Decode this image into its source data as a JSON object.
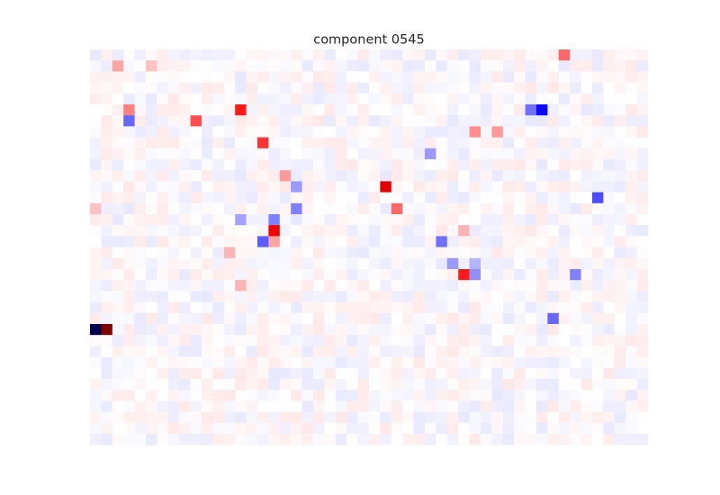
{
  "chart_data": {
    "type": "heatmap",
    "title": "component 0545",
    "xlabel": "",
    "ylabel": "",
    "rows": 36,
    "cols": 50,
    "colormap": "seismic",
    "value_range": [
      -1,
      1
    ],
    "axes_visible": false,
    "grid": false,
    "colorbar": false,
    "highlight_cells": [
      {
        "row": 0,
        "col": 42,
        "value": 0.3
      },
      {
        "row": 1,
        "col": 2,
        "value": 0.18
      },
      {
        "row": 1,
        "col": 5,
        "value": 0.12
      },
      {
        "row": 5,
        "col": 3,
        "value": 0.25
      },
      {
        "row": 5,
        "col": 13,
        "value": 0.45
      },
      {
        "row": 5,
        "col": 39,
        "value": -0.28
      },
      {
        "row": 5,
        "col": 40,
        "value": -0.48
      },
      {
        "row": 6,
        "col": 3,
        "value": -0.3
      },
      {
        "row": 6,
        "col": 9,
        "value": 0.35
      },
      {
        "row": 7,
        "col": 34,
        "value": 0.22
      },
      {
        "row": 7,
        "col": 36,
        "value": 0.2
      },
      {
        "row": 8,
        "col": 15,
        "value": 0.4
      },
      {
        "row": 9,
        "col": 30,
        "value": -0.2
      },
      {
        "row": 11,
        "col": 17,
        "value": 0.2
      },
      {
        "row": 12,
        "col": 18,
        "value": -0.2
      },
      {
        "row": 12,
        "col": 26,
        "value": 0.6
      },
      {
        "row": 13,
        "col": 45,
        "value": -0.35
      },
      {
        "row": 14,
        "col": 0,
        "value": 0.12
      },
      {
        "row": 14,
        "col": 18,
        "value": -0.25
      },
      {
        "row": 14,
        "col": 27,
        "value": 0.3
      },
      {
        "row": 15,
        "col": 13,
        "value": -0.18
      },
      {
        "row": 15,
        "col": 16,
        "value": -0.25
      },
      {
        "row": 16,
        "col": 16,
        "value": 0.55
      },
      {
        "row": 16,
        "col": 33,
        "value": 0.15
      },
      {
        "row": 17,
        "col": 15,
        "value": -0.32
      },
      {
        "row": 17,
        "col": 16,
        "value": 0.18
      },
      {
        "row": 17,
        "col": 31,
        "value": -0.28
      },
      {
        "row": 18,
        "col": 12,
        "value": 0.15
      },
      {
        "row": 19,
        "col": 32,
        "value": -0.2
      },
      {
        "row": 19,
        "col": 34,
        "value": -0.15
      },
      {
        "row": 20,
        "col": 33,
        "value": 0.45
      },
      {
        "row": 20,
        "col": 34,
        "value": -0.22
      },
      {
        "row": 20,
        "col": 43,
        "value": -0.25
      },
      {
        "row": 21,
        "col": 13,
        "value": 0.15
      },
      {
        "row": 24,
        "col": 41,
        "value": -0.3
      },
      {
        "row": 25,
        "col": 0,
        "value": -1.0
      },
      {
        "row": 25,
        "col": 1,
        "value": 1.0
      }
    ]
  }
}
